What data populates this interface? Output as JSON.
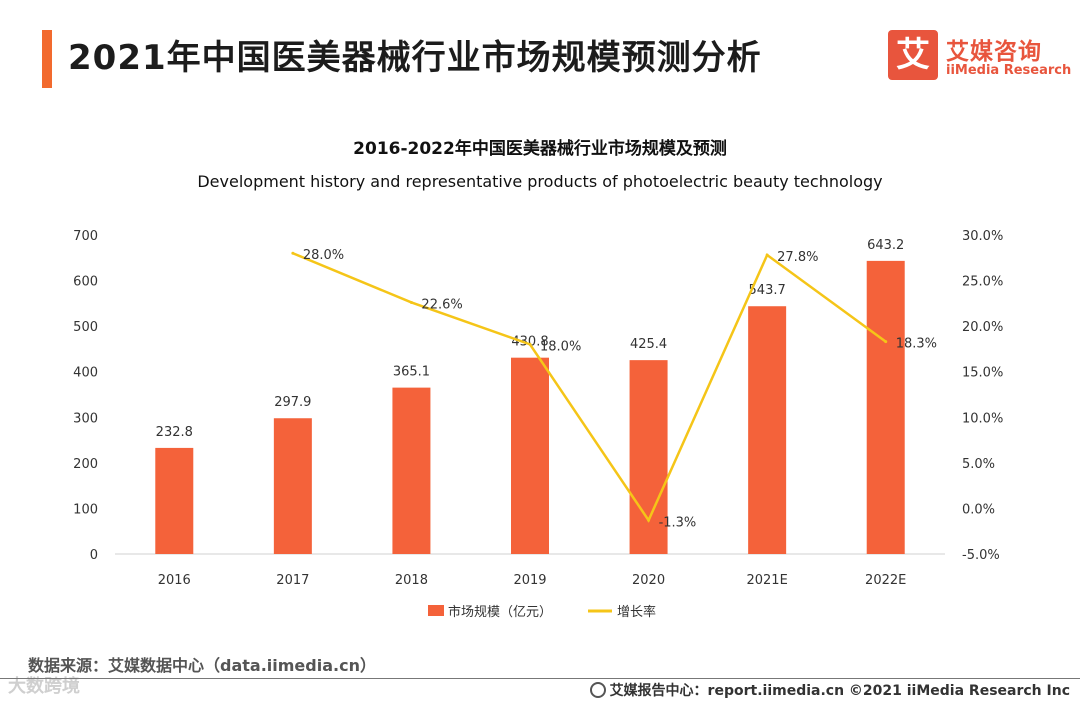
{
  "header": {
    "title": "2021年中国医美器械行业市场规模预测分析",
    "logo_char": "艾",
    "logo_cn": "艾媒咨询",
    "logo_en": "iiMedia Research"
  },
  "chart_data": {
    "type": "bar",
    "title": "2016-2022年中国医美器械行业市场规模及预测",
    "subtitle": "Development history and representative products of photoelectric beauty technology",
    "categories": [
      "2016",
      "2017",
      "2018",
      "2019",
      "2020",
      "2021E",
      "2022E"
    ],
    "series": [
      {
        "name": "市场规模（亿元）",
        "type": "bar",
        "axis": "left",
        "color": "#f4623a",
        "values": [
          232.8,
          297.9,
          365.1,
          430.8,
          425.4,
          543.7,
          643.2
        ],
        "labels": [
          "232.8",
          "297.9",
          "365.1",
          "430.8",
          "425.4",
          "543.7",
          "643.2"
        ]
      },
      {
        "name": "增长率",
        "type": "line",
        "axis": "right",
        "color": "#f5c518",
        "values": [
          null,
          28.0,
          22.6,
          18.0,
          -1.3,
          27.8,
          18.3
        ],
        "labels": [
          "",
          "28.0%",
          "22.6%",
          "18.0%",
          "-1.3%",
          "27.8%",
          "18.3%"
        ]
      }
    ],
    "y_left": {
      "ylim": [
        0,
        700
      ],
      "ticks": [
        "0",
        "100",
        "200",
        "300",
        "400",
        "500",
        "600",
        "700"
      ]
    },
    "y_right": {
      "ylim": [
        -5,
        30
      ],
      "ticks": [
        "-5.0%",
        "0.0%",
        "5.0%",
        "10.0%",
        "15.0%",
        "20.0%",
        "25.0%",
        "30.0%"
      ]
    },
    "grid": false,
    "legend_position": "bottom"
  },
  "footer": {
    "source": "数据来源：艾媒数据中心（data.iimedia.cn）",
    "watermark": "大数跨境",
    "report": "艾媒报告中心：report.iimedia.cn    ©2021  iiMedia Research  Inc"
  }
}
